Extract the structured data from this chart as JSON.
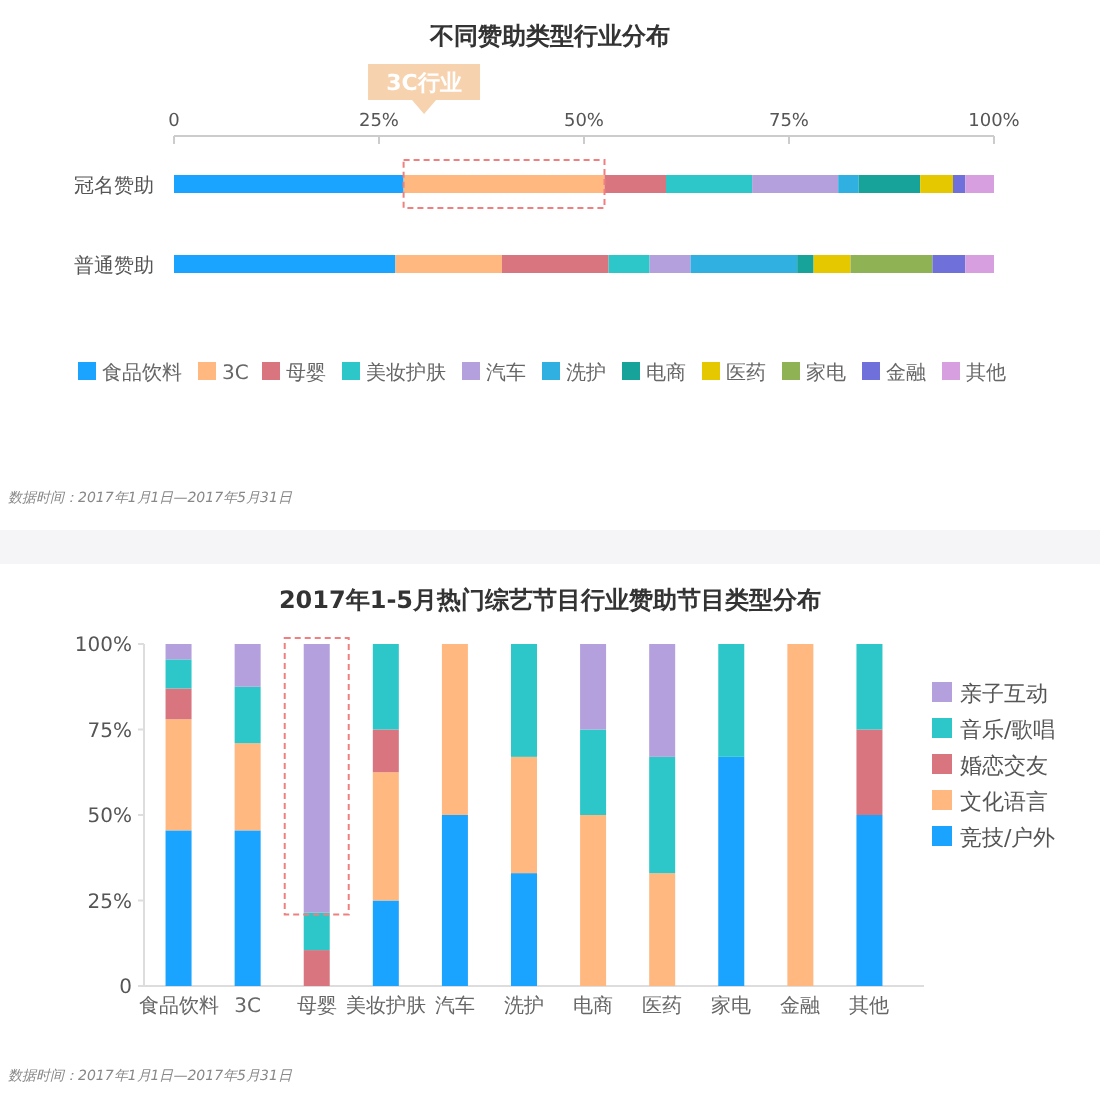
{
  "chart_data": [
    {
      "type": "bar",
      "orientation": "horizontal",
      "stacked": true,
      "title": "不同赞助类型行业分布",
      "categories": [
        "冠名赞助",
        "普通赞助"
      ],
      "series": [
        {
          "name": "食品饮料",
          "color": "#1aa3ff",
          "values": [
            28,
            27
          ]
        },
        {
          "name": "3C",
          "color": "#ffb880",
          "values": [
            24.5,
            13
          ]
        },
        {
          "name": "母婴",
          "color": "#d9757e",
          "values": [
            7.5,
            13
          ]
        },
        {
          "name": "美妆护肤",
          "color": "#2ec7c9",
          "values": [
            10.5,
            5
          ]
        },
        {
          "name": "汽车",
          "color": "#b3a0dc",
          "values": [
            10.5,
            5
          ]
        },
        {
          "name": "洗护",
          "color": "#2fb0e0",
          "values": [
            2.5,
            13
          ]
        },
        {
          "name": "电商",
          "color": "#17a29a",
          "values": [
            7.5,
            2
          ]
        },
        {
          "name": "医药",
          "color": "#e6c800",
          "values": [
            4,
            4.5
          ]
        },
        {
          "name": "家电",
          "color": "#8fb255",
          "values": [
            0,
            10
          ]
        },
        {
          "name": "金融",
          "color": "#6f70d9",
          "values": [
            1.5,
            4
          ]
        },
        {
          "name": "其他",
          "color": "#d89fe0",
          "values": [
            3.5,
            3.5
          ]
        }
      ],
      "xlim": [
        0,
        100
      ],
      "xticks": [
        0,
        {
          "value": 25,
          "label": "25%"
        },
        {
          "value": 50,
          "label": "50%"
        },
        {
          "value": 75,
          "label": "75%"
        },
        {
          "value": 100,
          "label": "100%"
        }
      ],
      "legend": "bottom",
      "grid": false,
      "annotations": [
        "3C行业",
        "数据时间：2017年1月1日—2017年5月31日"
      ]
    },
    {
      "type": "bar",
      "stacked": true,
      "title": "2017年1-5月热门综艺节目行业赞助节目类型分布",
      "categories": [
        "食品饮料",
        "3C",
        "母婴",
        "美妆护肤",
        "汽车",
        "洗护",
        "电商",
        "医药",
        "家电",
        "金融",
        "其他"
      ],
      "series": [
        {
          "name": "竞技/户外",
          "color": "#1aa3ff",
          "values": [
            45.5,
            45.5,
            0,
            25,
            50,
            33,
            0,
            0,
            67,
            0,
            50
          ]
        },
        {
          "name": "文化语言",
          "color": "#ffb880",
          "values": [
            32.5,
            25.5,
            0,
            37.5,
            50,
            34,
            50,
            33,
            0,
            100,
            0
          ]
        },
        {
          "name": "婚恋交友",
          "color": "#d9757e",
          "values": [
            9,
            0,
            10.5,
            12.5,
            0,
            0,
            0,
            0,
            0,
            0,
            25
          ]
        },
        {
          "name": "音乐/歌唱",
          "color": "#2ec7c9",
          "values": [
            8.5,
            16.5,
            11,
            25,
            0,
            33,
            25,
            34,
            33,
            0,
            25
          ]
        },
        {
          "name": "亲子互动",
          "color": "#b3a0dc",
          "values": [
            4.5,
            12.5,
            78.5,
            0,
            0,
            0,
            25,
            33,
            0,
            0,
            0
          ]
        }
      ],
      "ylim": [
        0,
        100
      ],
      "yticks": [
        0,
        {
          "value": 25,
          "label": "25%"
        },
        {
          "value": 50,
          "label": "50%"
        },
        {
          "value": 75,
          "label": "75%"
        },
        {
          "value": 100,
          "label": "100%"
        }
      ],
      "legend": "right",
      "grid": false,
      "annotations": [
        "数据时间：2017年1月1日—2017年5月31日"
      ]
    }
  ]
}
